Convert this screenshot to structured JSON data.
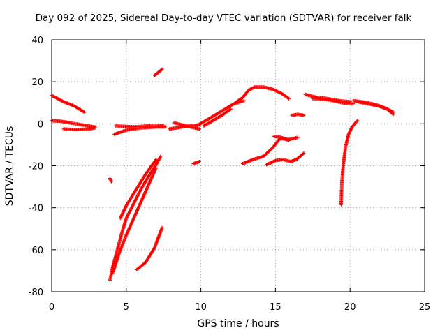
{
  "chart_data": {
    "type": "scatter",
    "title": "Day 092 of 2025, Sidereal Day-to-day VTEC variation (SDTVAR) for receiver falk",
    "xlabel": "GPS time / hours",
    "ylabel": "SDTVAR / TECUs",
    "xlim": [
      0,
      25
    ],
    "ylim": [
      -80,
      40
    ],
    "x_ticks": [
      0,
      5,
      10,
      15,
      20,
      25
    ],
    "y_ticks": [
      -80,
      -60,
      -40,
      -20,
      0,
      20,
      40
    ],
    "grid": true,
    "marker": "+",
    "color": "#ff0000",
    "segments": [
      {
        "x": [
          0.0,
          0.8,
          1.5,
          2.2
        ],
        "y": [
          13.5,
          10.5,
          8.5,
          5.5
        ]
      },
      {
        "x": [
          0.0,
          0.6,
          1.2,
          2.0,
          2.9
        ],
        "y": [
          1.5,
          1.2,
          0.5,
          -0.5,
          -1.5
        ]
      },
      {
        "x": [
          0.8,
          1.6,
          2.5,
          2.9
        ],
        "y": [
          -2.5,
          -2.8,
          -2.5,
          -2.0
        ]
      },
      {
        "x": [
          3.9,
          4.0
        ],
        "y": [
          -26.0,
          -27.5
        ]
      },
      {
        "x": [
          3.9,
          4.1,
          4.4,
          4.7,
          5.0,
          5.5,
          6.0,
          6.5,
          7.0,
          7.3
        ],
        "y": [
          -74.5,
          -68.0,
          -60.0,
          -52.0,
          -45.0,
          -38.0,
          -31.0,
          -25.0,
          -19.5,
          -15.5
        ]
      },
      {
        "x": [
          4.1,
          4.5,
          5.0,
          5.5,
          6.0,
          6.5,
          7.0
        ],
        "y": [
          -71.0,
          -62.0,
          -53.0,
          -45.0,
          -37.0,
          -29.0,
          -21.0
        ]
      },
      {
        "x": [
          4.6,
          5.0,
          5.6,
          6.3,
          7.0
        ],
        "y": [
          -45.0,
          -39.0,
          -32.0,
          -24.0,
          -17.0
        ]
      },
      {
        "x": [
          4.2,
          5.0,
          6.0,
          7.0,
          7.6
        ],
        "y": [
          -5.0,
          -3.0,
          -2.0,
          -1.5,
          -1.5
        ]
      },
      {
        "x": [
          4.3,
          5.5,
          6.5,
          7.5
        ],
        "y": [
          -1.0,
          -1.5,
          -1.0,
          -1.0
        ]
      },
      {
        "x": [
          5.7,
          6.3,
          6.9,
          7.4
        ],
        "y": [
          -69.5,
          -66.0,
          -59.0,
          -49.5
        ]
      },
      {
        "x": [
          6.9,
          7.4
        ],
        "y": [
          23.0,
          26.0
        ]
      },
      {
        "x": [
          7.9,
          8.5,
          9.2,
          9.9
        ],
        "y": [
          -2.5,
          -1.8,
          -1.0,
          -0.5
        ]
      },
      {
        "x": [
          8.2,
          9.0,
          9.9
        ],
        "y": [
          0.5,
          -1.0,
          -2.5
        ]
      },
      {
        "x": [
          9.5,
          9.9
        ],
        "y": [
          -19.0,
          -18.0
        ]
      },
      {
        "x": [
          9.7,
          10.2,
          10.8,
          11.5,
          12.2,
          12.9
        ],
        "y": [
          -1.0,
          1.0,
          3.5,
          6.5,
          9.5,
          11.0
        ]
      },
      {
        "x": [
          10.2,
          10.8,
          11.4,
          12.0
        ],
        "y": [
          -1.0,
          1.5,
          4.0,
          7.0
        ]
      },
      {
        "x": [
          12.3,
          12.8,
          13.2,
          13.6,
          14.2,
          14.8,
          15.4,
          15.9
        ],
        "y": [
          10.0,
          12.5,
          16.0,
          17.5,
          17.5,
          16.5,
          14.5,
          12.0
        ]
      },
      {
        "x": [
          12.8,
          13.5,
          14.2,
          14.8,
          15.3,
          15.9,
          16.5
        ],
        "y": [
          -19.0,
          -17.0,
          -15.5,
          -11.5,
          -7.0,
          -7.5,
          -6.5
        ]
      },
      {
        "x": [
          14.9,
          15.4,
          15.9
        ],
        "y": [
          -6.0,
          -6.5,
          -8.0
        ]
      },
      {
        "x": [
          14.4,
          15.0,
          15.5,
          16.0,
          16.4,
          16.9
        ],
        "y": [
          -19.5,
          -17.5,
          -17.0,
          -18.0,
          -17.0,
          -14.0
        ]
      },
      {
        "x": [
          16.1,
          16.5,
          16.9
        ],
        "y": [
          4.0,
          4.5,
          4.0
        ]
      },
      {
        "x": [
          17.0,
          17.8,
          18.5,
          19.3,
          20.0
        ],
        "y": [
          14.0,
          12.5,
          12.0,
          11.0,
          10.5
        ]
      },
      {
        "x": [
          17.5,
          18.5,
          19.5,
          20.2
        ],
        "y": [
          12.0,
          11.5,
          10.0,
          9.5
        ]
      },
      {
        "x": [
          20.2,
          20.8,
          21.5,
          22.0,
          22.5,
          22.9
        ],
        "y": [
          11.0,
          10.5,
          9.5,
          8.5,
          7.0,
          4.5
        ]
      },
      {
        "x": [
          20.5,
          21.2,
          21.9,
          22.5,
          22.9
        ],
        "y": [
          10.5,
          9.5,
          8.5,
          7.0,
          5.5
        ]
      },
      {
        "x": [
          19.4,
          19.45,
          19.55,
          19.7,
          19.9,
          20.1,
          20.3,
          20.5
        ],
        "y": [
          -38.5,
          -28.0,
          -19.0,
          -11.0,
          -5.0,
          -2.0,
          0.0,
          1.5
        ]
      }
    ]
  }
}
